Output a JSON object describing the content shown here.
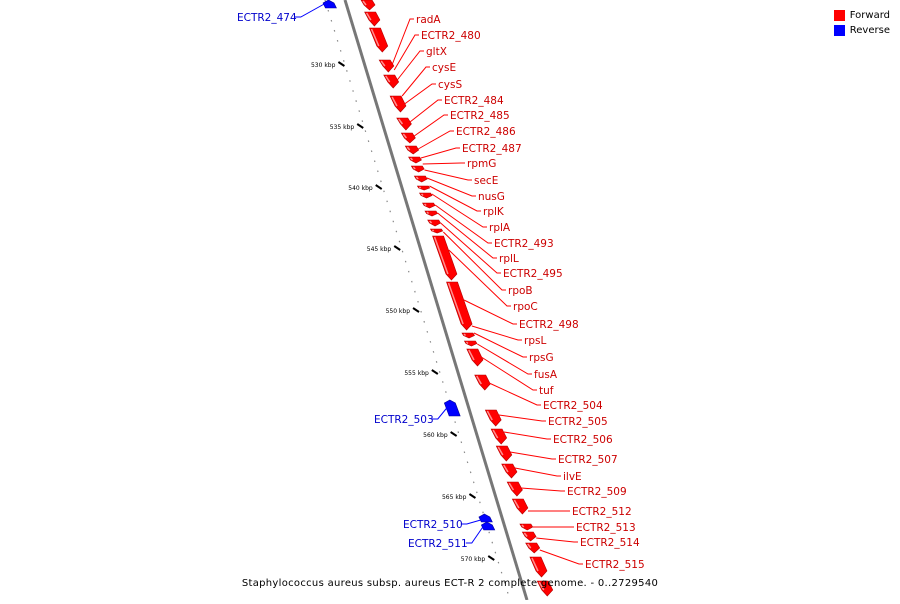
{
  "diagram": {
    "caption": "Staphylococcus aureus subsp. aureus ECT-R 2 complete genome. - 0..2729540",
    "legend": [
      {
        "label": "Forward",
        "color": "#ff0000"
      },
      {
        "label": "Reverse",
        "color": "#0000ff"
      }
    ],
    "colors": {
      "forward": "#ff0000",
      "reverse": "#0000ff",
      "backbone": "#777777",
      "text_forward": "#cc0000",
      "text_reverse": "#0000cc"
    },
    "scale_ticks": [
      "530 kbp",
      "535 kbp",
      "540 kbp",
      "545 kbp",
      "550 kbp",
      "555 kbp",
      "560 kbp",
      "565 kbp",
      "570 kbp"
    ],
    "forward_genes": [
      "radA",
      "ECTR2_480",
      "gltX",
      "cysE",
      "cysS",
      "ECTR2_484",
      "ECTR2_485",
      "ECTR2_486",
      "ECTR2_487",
      "rpmG",
      "secE",
      "nusG",
      "rplK",
      "rplA",
      "ECTR2_493",
      "rplL",
      "ECTR2_495",
      "rpoB",
      "rpoC",
      "ECTR2_498",
      "rpsL",
      "rpsG",
      "fusA",
      "tuf",
      "ECTR2_504",
      "ECTR2_505",
      "ECTR2_506",
      "ECTR2_507",
      "ilvE",
      "ECTR2_509",
      "ECTR2_512",
      "ECTR2_513",
      "ECTR2_514",
      "ECTR2_515"
    ],
    "reverse_genes": [
      "ECTR2_474",
      "ECTR2_503",
      "ECTR2_510",
      "ECTR2_511"
    ]
  }
}
